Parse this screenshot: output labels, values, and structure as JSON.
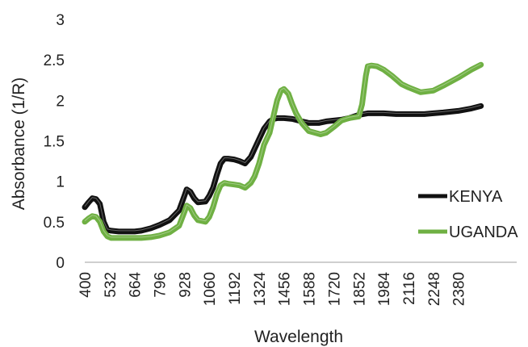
{
  "chart_data": {
    "type": "line",
    "title": "",
    "xlabel": "Wavelength",
    "ylabel": "Absorbance (1/R)",
    "xlim": [
      400,
      2500
    ],
    "ylim": [
      0,
      3
    ],
    "y_ticks": [
      "0",
      "0.5",
      "1",
      "1.5",
      "2",
      "2.5",
      "3"
    ],
    "x_ticks": [
      "400",
      "532",
      "664",
      "796",
      "928",
      "1060",
      "1192",
      "1324",
      "1456",
      "1588",
      "1720",
      "1852",
      "1984",
      "2116",
      "2248",
      "2380"
    ],
    "grid": false,
    "legend": "right",
    "colors": {
      "KENYA": "#111111",
      "UGANDA": "#6fb043"
    },
    "series": [
      {
        "name": "KENYA",
        "x": [
          400,
          420,
          440,
          460,
          480,
          500,
          520,
          540,
          580,
          620,
          664,
          700,
          750,
          796,
          850,
          900,
          928,
          940,
          960,
          980,
          1000,
          1040,
          1060,
          1080,
          1100,
          1120,
          1140,
          1160,
          1192,
          1220,
          1250,
          1280,
          1300,
          1324,
          1350,
          1380,
          1400,
          1420,
          1456,
          1500,
          1550,
          1588,
          1640,
          1680,
          1720,
          1760,
          1800,
          1852,
          1900,
          1984,
          2050,
          2116,
          2200,
          2248,
          2300,
          2380,
          2450,
          2500
        ],
        "values": [
          0.68,
          0.74,
          0.79,
          0.78,
          0.72,
          0.5,
          0.4,
          0.39,
          0.38,
          0.38,
          0.38,
          0.39,
          0.42,
          0.46,
          0.52,
          0.64,
          0.82,
          0.9,
          0.87,
          0.79,
          0.74,
          0.75,
          0.82,
          0.92,
          1.08,
          1.22,
          1.28,
          1.28,
          1.27,
          1.25,
          1.22,
          1.3,
          1.4,
          1.52,
          1.65,
          1.74,
          1.77,
          1.78,
          1.78,
          1.77,
          1.74,
          1.72,
          1.72,
          1.74,
          1.75,
          1.76,
          1.78,
          1.82,
          1.84,
          1.84,
          1.83,
          1.83,
          1.83,
          1.84,
          1.85,
          1.87,
          1.9,
          1.93
        ]
      },
      {
        "name": "UGANDA",
        "x": [
          400,
          420,
          440,
          460,
          480,
          500,
          520,
          540,
          580,
          620,
          664,
          700,
          750,
          796,
          850,
          900,
          928,
          940,
          960,
          980,
          1000,
          1040,
          1060,
          1080,
          1100,
          1120,
          1140,
          1160,
          1192,
          1220,
          1250,
          1280,
          1300,
          1324,
          1350,
          1380,
          1400,
          1420,
          1440,
          1456,
          1480,
          1500,
          1520,
          1550,
          1588,
          1620,
          1650,
          1680,
          1720,
          1760,
          1800,
          1852,
          1870,
          1890,
          1900,
          1920,
          1950,
          1984,
          2030,
          2080,
          2116,
          2180,
          2248,
          2300,
          2380,
          2450,
          2500
        ],
        "values": [
          0.5,
          0.54,
          0.57,
          0.56,
          0.5,
          0.38,
          0.32,
          0.3,
          0.3,
          0.3,
          0.3,
          0.3,
          0.31,
          0.33,
          0.37,
          0.45,
          0.62,
          0.7,
          0.67,
          0.58,
          0.52,
          0.5,
          0.56,
          0.68,
          0.84,
          0.95,
          0.98,
          0.97,
          0.96,
          0.95,
          0.92,
          0.98,
          1.06,
          1.22,
          1.45,
          1.6,
          1.8,
          2.0,
          2.12,
          2.14,
          2.08,
          1.95,
          1.84,
          1.72,
          1.62,
          1.6,
          1.58,
          1.6,
          1.67,
          1.75,
          1.78,
          1.8,
          1.95,
          2.3,
          2.42,
          2.43,
          2.42,
          2.38,
          2.3,
          2.2,
          2.16,
          2.1,
          2.12,
          2.18,
          2.28,
          2.38,
          2.44
        ]
      }
    ]
  }
}
